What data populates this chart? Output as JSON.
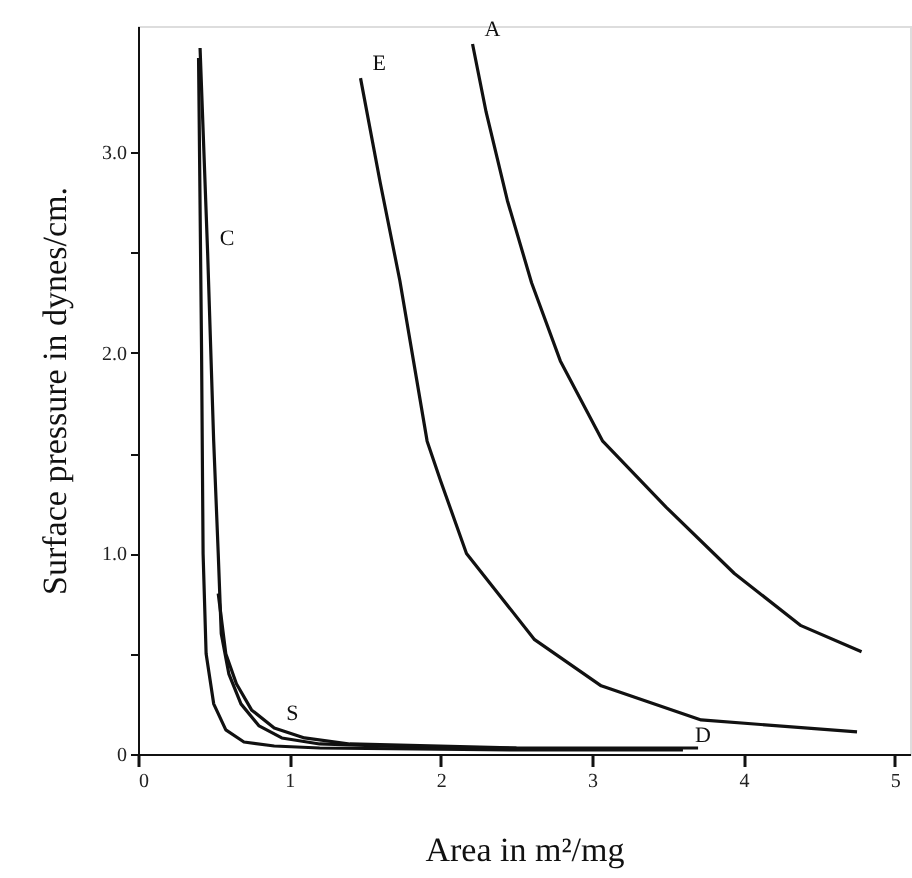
{
  "chart_data": {
    "type": "line",
    "xlabel": "Area in m²/mg",
    "ylabel": "Surface pressure in dynes/cm.",
    "xlim": [
      0,
      5.1
    ],
    "ylim": [
      0,
      3.63
    ],
    "xticks": [
      0,
      1,
      2,
      3,
      4,
      5
    ],
    "yticks": [
      0,
      {
        "value": 0.5,
        "label": null
      },
      {
        "value": 1,
        "label": "1.0"
      },
      {
        "value": 1.5,
        "label": null
      },
      {
        "value": 2,
        "label": "2.0"
      },
      {
        "value": 2.5,
        "label": null
      },
      {
        "value": 3,
        "label": "3.0"
      }
    ],
    "grid": false,
    "line_style": "solid",
    "marker": "none",
    "series": [
      {
        "color": "#111111",
        "x": [
          2.21,
          2.3,
          2.44,
          2.6,
          2.79,
          3.07,
          3.49,
          3.94,
          4.38,
          4.78
        ],
        "values": [
          3.54,
          3.2,
          2.76,
          2.35,
          1.96,
          1.56,
          1.23,
          0.9,
          0.64,
          0.51
        ]
      },
      {
        "color": "#111111",
        "x": [
          1.47,
          1.6,
          1.73,
          1.91,
          2.0,
          2.17,
          2.62,
          3.06,
          3.72,
          4.75
        ],
        "values": [
          3.37,
          2.85,
          2.36,
          1.56,
          1.36,
          1.0,
          0.57,
          0.34,
          0.17,
          0.11
        ]
      },
      {
        "color": "#111111",
        "x": [
          0.41,
          0.46,
          0.5,
          0.53,
          0.55,
          0.6,
          0.68,
          0.8,
          0.95,
          1.2,
          2.0,
          3.7
        ],
        "values": [
          3.52,
          2.5,
          1.56,
          1.0,
          0.6,
          0.4,
          0.25,
          0.14,
          0.08,
          0.05,
          0.03,
          0.03
        ]
      },
      {
        "color": "#111111",
        "x": [
          0.4,
          0.42,
          0.43,
          0.45,
          0.5,
          0.58,
          0.7,
          0.9,
          1.2,
          2.5,
          3.6
        ],
        "values": [
          3.47,
          2.0,
          1.0,
          0.5,
          0.25,
          0.12,
          0.06,
          0.04,
          0.03,
          0.02,
          0.02
        ]
      },
      {
        "color": "#111111",
        "x": [
          0.53,
          0.58,
          0.65,
          0.75,
          0.9,
          1.1,
          1.4,
          2.5
        ],
        "values": [
          0.8,
          0.5,
          0.35,
          0.22,
          0.13,
          0.08,
          0.05,
          0.03
        ]
      }
    ],
    "annotations": [
      {
        "text": "A",
        "x": 2.21,
        "y": 3.54
      },
      {
        "text": "E",
        "x": 1.47,
        "y": 3.37
      },
      {
        "text": "C",
        "x": 0.46,
        "y": 2.5
      },
      {
        "text": "D",
        "x": 3.6,
        "y": 0.02
      },
      {
        "text": "S",
        "x": 0.9,
        "y": 0.13
      }
    ]
  }
}
